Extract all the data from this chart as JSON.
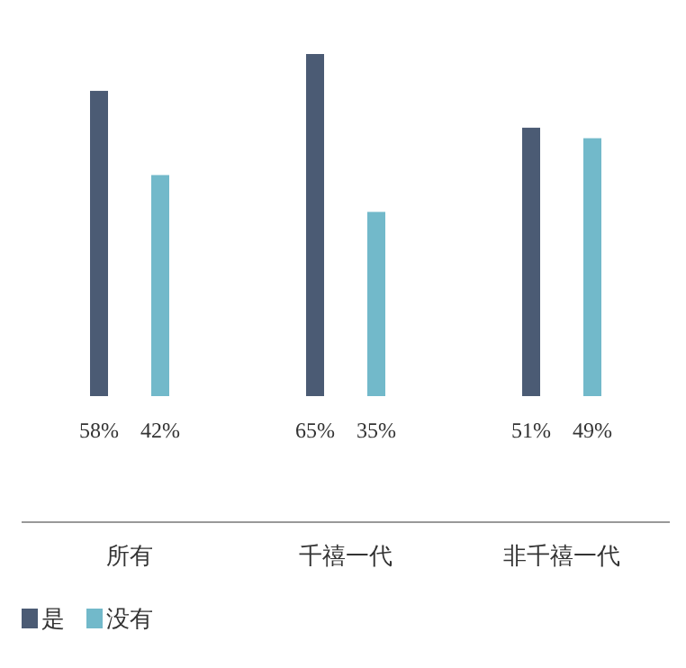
{
  "chart_data": {
    "type": "bar",
    "categories": [
      "所有",
      "千禧一代",
      "非千禧一代"
    ],
    "series": [
      {
        "name": "是",
        "color": "#4b5b74",
        "values": [
          58,
          65,
          51
        ],
        "value_labels": [
          "58%",
          "65%",
          "51%"
        ]
      },
      {
        "name": "没有",
        "color": "#72b9ca",
        "values": [
          42,
          35,
          49
        ],
        "value_labels": [
          "42%",
          "35%",
          "49%"
        ]
      }
    ],
    "legend": "bottom left"
  }
}
